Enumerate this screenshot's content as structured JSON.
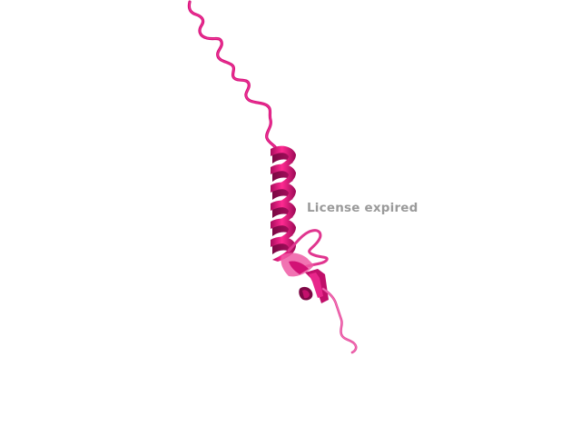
{
  "viewer": {
    "watermark_text": "License expired",
    "colors": {
      "background": "#ffffff",
      "ribbon_main": "#e0147d",
      "ribbon_dark": "#b30d62",
      "ribbon_light": "#ef5aa4",
      "watermark": "#9a9a9a"
    },
    "molecule": {
      "representation": "cartoon",
      "segments": [
        "n-terminal-coil",
        "alpha-helix",
        "loop-region",
        "beta-strand",
        "c-terminal-coil"
      ]
    }
  }
}
